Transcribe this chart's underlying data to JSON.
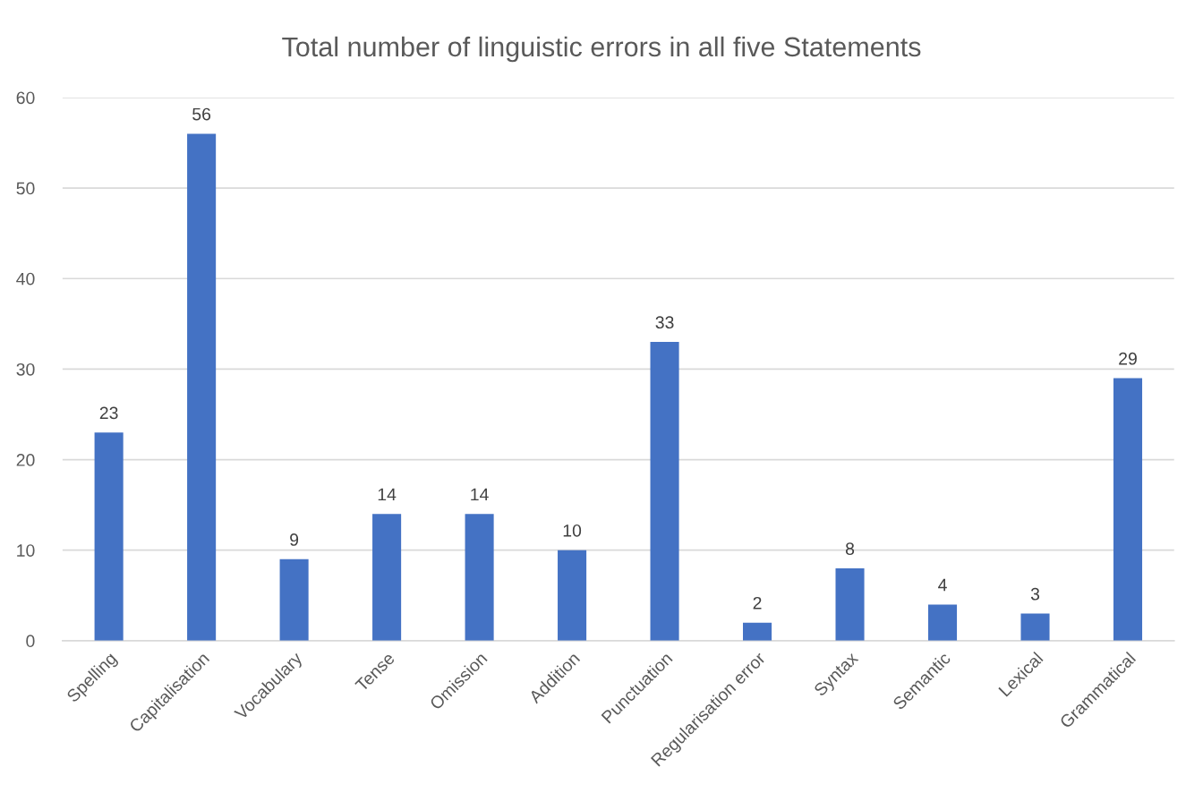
{
  "chart_data": {
    "type": "bar",
    "title": "Total number of linguistic errors in all five Statements",
    "categories": [
      "Spelling",
      "Capitalisation",
      "Vocabulary",
      "Tense",
      "Omission",
      "Addition",
      "Punctuation",
      "Regularisation error",
      "Syntax",
      "Semantic",
      "Lexical",
      "Grammatical"
    ],
    "values": [
      23,
      56,
      9,
      14,
      14,
      10,
      33,
      2,
      8,
      4,
      3,
      29
    ],
    "color": "#4472c4",
    "ylim": [
      0,
      60
    ],
    "yticks": [
      0,
      10,
      20,
      30,
      40,
      50,
      60
    ],
    "grid": "y",
    "data_labels": true
  }
}
